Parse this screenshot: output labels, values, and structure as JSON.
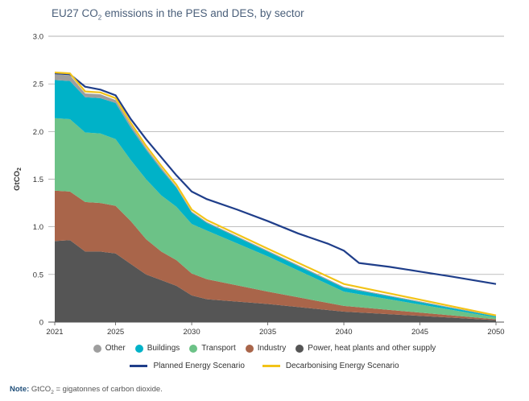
{
  "chart_data": {
    "type": "area",
    "title_prefix": "EU27 CO",
    "title_sub": "2",
    "title_suffix": " emissions in the PES and DES, by sector",
    "ylabel_prefix": "GtCO",
    "ylabel_sub": "2",
    "ylim": [
      0,
      3.0
    ],
    "yticks": [
      0,
      0.5,
      1.0,
      1.5,
      2.0,
      2.5,
      3.0
    ],
    "ytick_labels": [
      "0",
      "0.5",
      "1.0",
      "1.5",
      "2.0",
      "2.5",
      "3.0"
    ],
    "xlim": [
      2021,
      2050
    ],
    "xticks": [
      2021,
      2025,
      2030,
      2035,
      2040,
      2045,
      2050
    ],
    "grid": true,
    "x": [
      2021,
      2022,
      2023,
      2024,
      2025,
      2026,
      2027,
      2028,
      2029,
      2030,
      2031,
      2035,
      2040,
      2050
    ],
    "stacked_series": [
      {
        "name": "Power, heat plants and other supply",
        "color": "#555555",
        "values": [
          0.85,
          0.86,
          0.74,
          0.74,
          0.72,
          0.61,
          0.5,
          0.44,
          0.38,
          0.28,
          0.24,
          0.19,
          0.11,
          0.02
        ]
      },
      {
        "name": "Industry",
        "color": "#a9654a",
        "values": [
          0.53,
          0.51,
          0.52,
          0.51,
          0.5,
          0.45,
          0.37,
          0.3,
          0.27,
          0.23,
          0.21,
          0.13,
          0.06,
          0.01
        ]
      },
      {
        "name": "Transport",
        "color": "#6cc287",
        "values": [
          0.76,
          0.76,
          0.73,
          0.73,
          0.7,
          0.64,
          0.63,
          0.59,
          0.56,
          0.52,
          0.51,
          0.37,
          0.15,
          0.02
        ]
      },
      {
        "name": "Buildings",
        "color": "#00b2c8",
        "values": [
          0.4,
          0.4,
          0.37,
          0.37,
          0.38,
          0.34,
          0.31,
          0.27,
          0.2,
          0.12,
          0.08,
          0.05,
          0.04,
          0.01
        ]
      },
      {
        "name": "Other",
        "color": "#9e9e9e",
        "values": [
          0.06,
          0.06,
          0.04,
          0.04,
          0.03,
          0.03,
          0.02,
          0.02,
          0.01,
          0.01,
          0.01,
          0.01,
          0.01,
          0.005
        ]
      }
    ],
    "line_series": [
      {
        "name": "Planned Energy Scenario",
        "color": "#1f3e8a",
        "x": [
          2021,
          2022,
          2023,
          2024,
          2025,
          2026,
          2027,
          2028,
          2029,
          2030,
          2031,
          2033,
          2035,
          2037,
          2039,
          2040,
          2041,
          2043,
          2045,
          2047,
          2050
        ],
        "values": [
          2.61,
          2.6,
          2.47,
          2.44,
          2.38,
          2.13,
          1.92,
          1.73,
          1.54,
          1.37,
          1.29,
          1.18,
          1.06,
          0.93,
          0.82,
          0.75,
          0.62,
          0.58,
          0.53,
          0.48,
          0.4
        ]
      },
      {
        "name": "Decarbonising Energy Scenario",
        "color": "#f2c318",
        "x": [
          2021,
          2022,
          2023,
          2024,
          2025,
          2026,
          2027,
          2028,
          2029,
          2030,
          2031,
          2035,
          2040,
          2050
        ],
        "values": [
          2.62,
          2.61,
          2.42,
          2.41,
          2.35,
          2.09,
          1.85,
          1.64,
          1.44,
          1.18,
          1.07,
          0.77,
          0.4,
          0.07
        ]
      }
    ],
    "legend_row1": [
      "Other",
      "Buildings",
      "Transport",
      "Industry",
      "Power, heat plants and other supply"
    ],
    "legend_row2": [
      "Planned Energy Scenario",
      "Decarbonising Energy Scenario"
    ]
  },
  "note": {
    "label": "Note:",
    "text_prefix": " GtCO",
    "text_sub": "2",
    "text_suffix": " = gigatonnes of carbon dioxide."
  }
}
